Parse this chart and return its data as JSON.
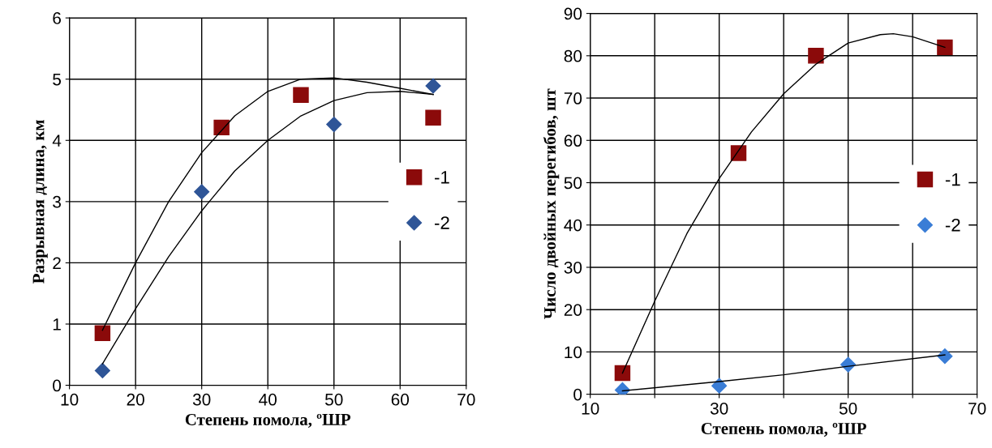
{
  "chart_data": [
    {
      "type": "scatter",
      "xlabel": "Степень помола, ºШР",
      "ylabel": "Разрывная длина, км",
      "xlim": [
        10,
        70
      ],
      "ylim": [
        0,
        6
      ],
      "xticks": [
        10,
        20,
        30,
        40,
        50,
        60,
        70
      ],
      "yticks": [
        0,
        1,
        2,
        3,
        4,
        5,
        6
      ],
      "grid": true,
      "legend": "right",
      "series": [
        {
          "name": "-1",
          "marker": "square",
          "color": "#8b0a0a",
          "x": [
            15,
            33,
            45,
            65
          ],
          "values": [
            0.85,
            4.21,
            4.74,
            4.37
          ]
        },
        {
          "name": "-2",
          "marker": "diamond",
          "color": "#2f5597",
          "x": [
            15,
            30,
            50,
            65
          ],
          "values": [
            0.24,
            3.16,
            4.26,
            4.89
          ]
        },
        {
          "type": "line",
          "marker": "none",
          "color": "#000000",
          "x": [
            15,
            20,
            25,
            30,
            35,
            40,
            45,
            50,
            55,
            60,
            65
          ],
          "values": [
            0.9,
            2.0,
            3.0,
            3.8,
            4.4,
            4.8,
            5.0,
            5.02,
            4.95,
            4.85,
            4.75
          ]
        },
        {
          "type": "line",
          "marker": "none",
          "color": "#000000",
          "x": [
            15,
            20,
            25,
            30,
            35,
            40,
            45,
            50,
            55,
            60,
            65
          ],
          "values": [
            0.35,
            1.25,
            2.1,
            2.85,
            3.5,
            4.0,
            4.4,
            4.65,
            4.78,
            4.8,
            4.75
          ]
        }
      ]
    },
    {
      "type": "scatter",
      "xlabel": "Степень помола, ºШР",
      "ylabel": "Число двойных перегибов, шт",
      "xlim": [
        10,
        70
      ],
      "ylim": [
        0,
        90
      ],
      "xticks": [
        10,
        {
          "value": 20,
          "label": null
        },
        30,
        {
          "value": 40,
          "label": null
        },
        50,
        {
          "value": 60,
          "label": null
        },
        70
      ],
      "yticks": [
        0,
        10,
        20,
        30,
        40,
        50,
        60,
        70,
        80,
        90
      ],
      "grid": true,
      "legend": "right",
      "series": [
        {
          "name": "-1",
          "marker": "square",
          "color": "#8b0a0a",
          "x": [
            15,
            33,
            45,
            65
          ],
          "values": [
            5,
            57,
            80,
            82
          ]
        },
        {
          "name": "-2",
          "marker": "diamond",
          "color": "#3a7dd6",
          "x": [
            15,
            30,
            50,
            65
          ],
          "values": [
            1,
            2,
            7,
            9
          ]
        },
        {
          "type": "line",
          "marker": "none",
          "color": "#000000",
          "x": [
            15,
            20,
            25,
            30,
            35,
            40,
            45,
            50,
            55,
            57,
            60,
            65
          ],
          "values": [
            5,
            22,
            38,
            51,
            62,
            71,
            78,
            83,
            85,
            85.2,
            84.5,
            82
          ]
        },
        {
          "type": "line",
          "marker": "none",
          "color": "#000000",
          "x": [
            15,
            30,
            40,
            50,
            65
          ],
          "values": [
            0.8,
            3,
            4.6,
            6.6,
            9.3
          ]
        }
      ]
    }
  ]
}
